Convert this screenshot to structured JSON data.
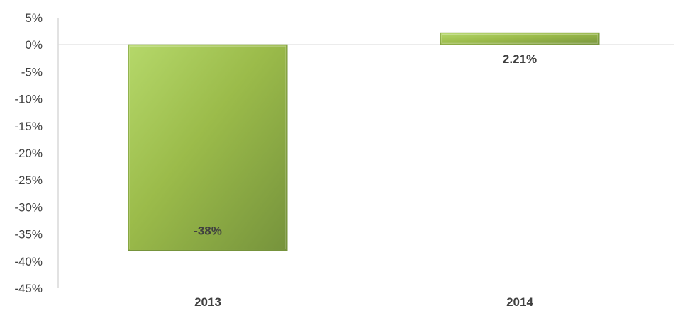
{
  "chart_data": {
    "type": "bar",
    "categories": [
      "2013",
      "2014"
    ],
    "values": [
      -38,
      2.21
    ],
    "data_labels": [
      "-38%",
      "2.21%"
    ],
    "title": "",
    "xlabel": "",
    "ylabel": "",
    "ylim": [
      -45,
      5
    ],
    "yticks": [
      5,
      0,
      -5,
      -10,
      -15,
      -20,
      -25,
      -30,
      -35,
      -40,
      -45
    ],
    "ytick_labels": [
      "5%",
      "0%",
      "-5%",
      "-10%",
      "-15%",
      "-20%",
      "-25%",
      "-30%",
      "-35%",
      "-40%",
      "-45%"
    ],
    "grid": false,
    "legend": "none",
    "bar_color": "#9bbb4a",
    "bar_color_light": "#b5d86a",
    "bar_color_dark": "#76933c",
    "axis_color": "#d9d9d9"
  }
}
